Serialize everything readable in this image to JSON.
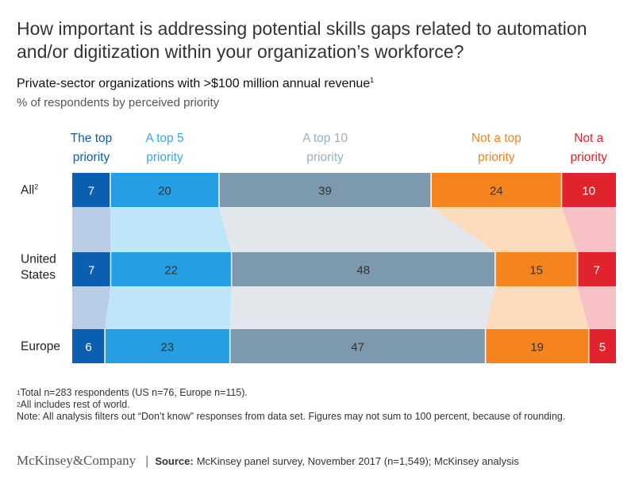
{
  "title": "How important is addressing potential skills gaps related to automation and/or digitization within your organization’s workforce?",
  "subtitle": "Private-sector organizations with >$100 million annual revenue",
  "subtitle_note": "1",
  "unit_label": "% of respondents by perceived priority",
  "chart_data": {
    "type": "bar",
    "stacked": true,
    "orientation": "horizontal",
    "normalized": true,
    "categories": [
      {
        "label": "All",
        "note": "2"
      },
      {
        "label": "United States",
        "note": ""
      },
      {
        "label": "Europe",
        "note": ""
      }
    ],
    "series": [
      {
        "name": "The top priority",
        "values": [
          7,
          7,
          6
        ]
      },
      {
        "name": "A top 5 priority",
        "values": [
          20,
          22,
          23
        ]
      },
      {
        "name": "A top 10 priority",
        "values": [
          39,
          48,
          47
        ]
      },
      {
        "name": "Not a top priority",
        "values": [
          24,
          15,
          19
        ]
      },
      {
        "name": "Not a priority",
        "values": [
          10,
          7,
          5
        ]
      }
    ],
    "colors": {
      "bars": [
        "#0c5fb0",
        "#259ee3",
        "#7d99ad",
        "#f5841f",
        "#e0232d"
      ],
      "connectors": [
        "#b9cde7",
        "#bfe6f8",
        "#e2e7ec",
        "#fcdcbc",
        "#f7c1c6"
      ],
      "headers": [
        "#0c5fb0",
        "#3aa8e6",
        "#98b0c2",
        "#f5841f",
        "#e0232d"
      ],
      "label_dark": "#333333",
      "label_light": "#ffffff"
    }
  },
  "footnotes": {
    "note1": "Total n=283 respondents (US n=76, Europe n=115).",
    "note2": "All includes rest of world.",
    "note": "Note: All analysis filters out “Don’t know” responses from data set. Figures may not sum to 100 percent, because of rounding."
  },
  "footer": {
    "logo_text": "McKinsey&Company",
    "separator": "|",
    "source_label": "Source:",
    "source_text": "McKinsey panel survey, November 2017 (n=1,549); McKinsey analysis"
  }
}
